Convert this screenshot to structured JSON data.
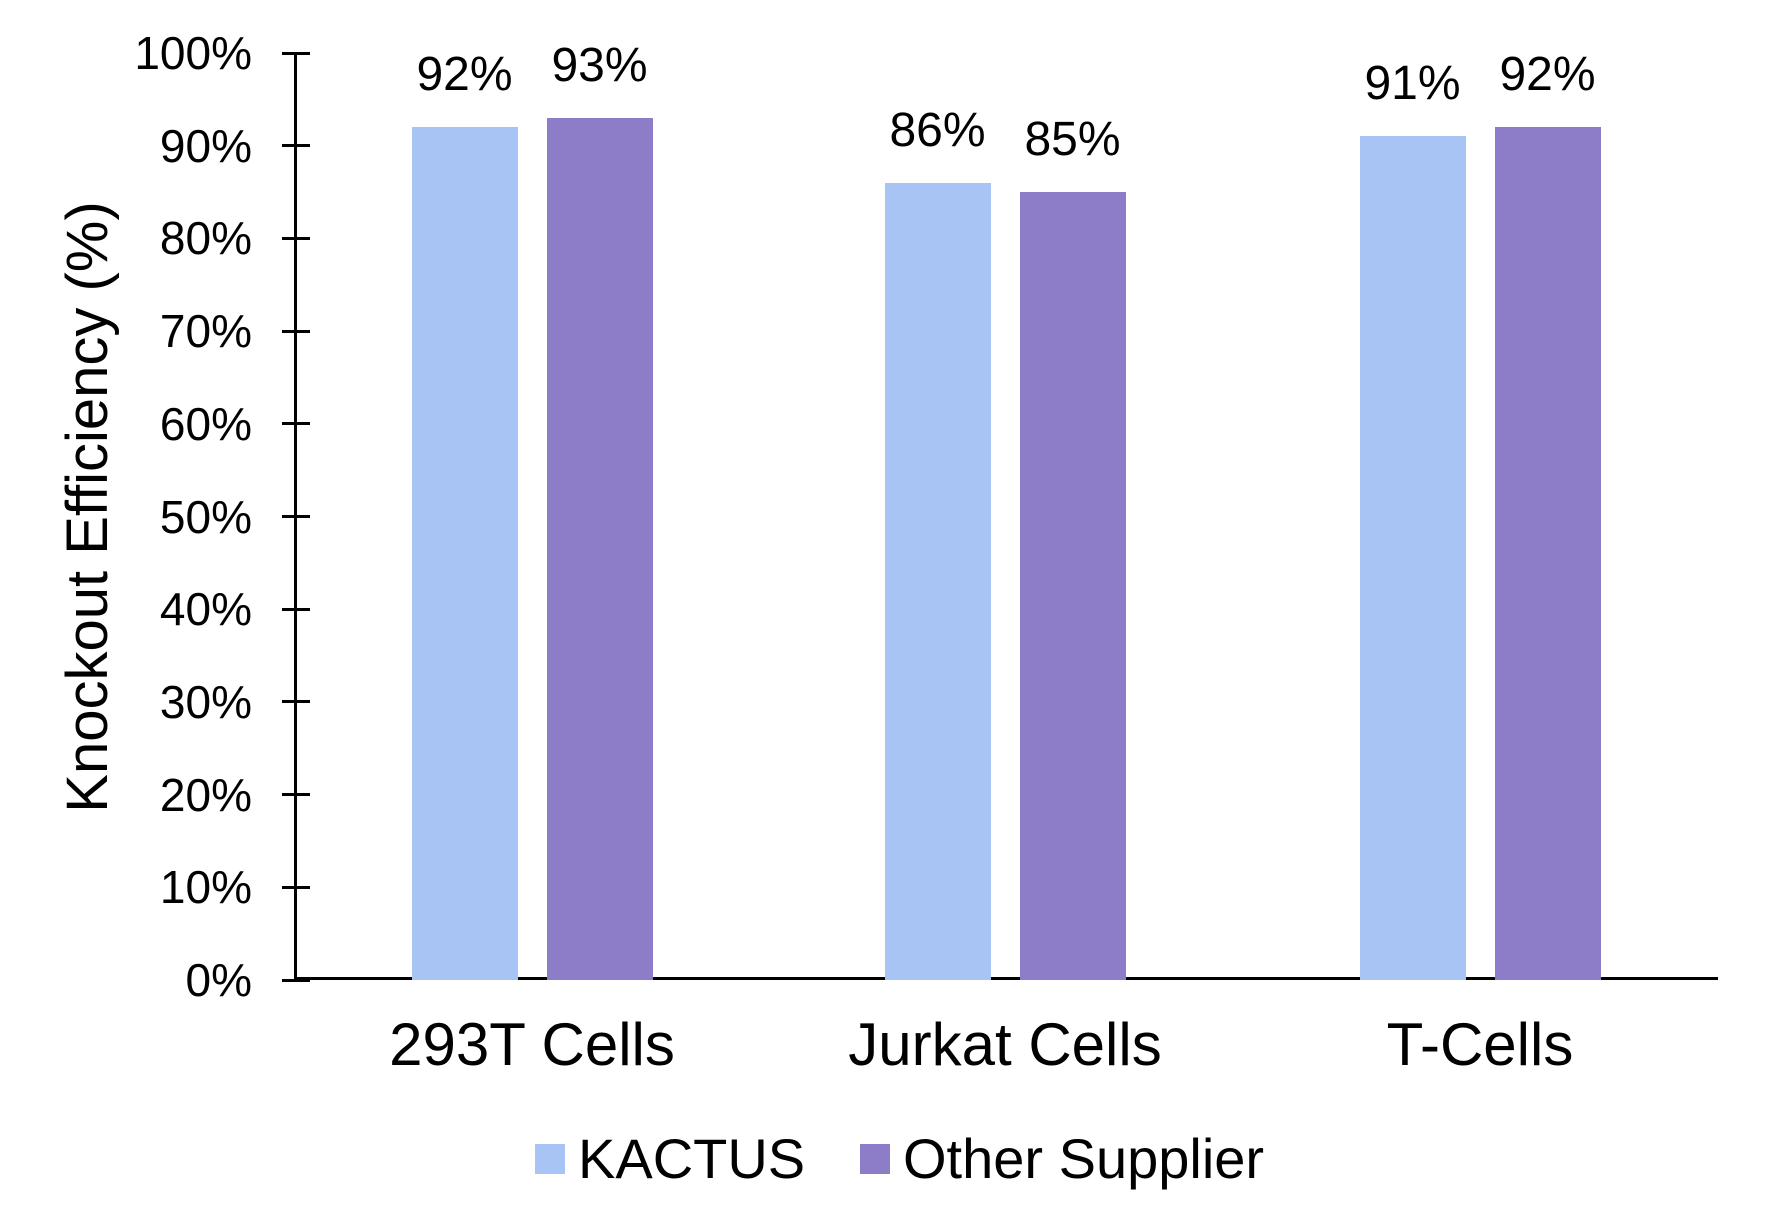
{
  "chart_data": {
    "type": "bar",
    "title": "",
    "ylabel": "Knockout Efficiency (%)",
    "xlabel": "",
    "categories": [
      "293T Cells",
      "Jurkat Cells",
      "T-Cells"
    ],
    "series": [
      {
        "name": "KACTUS",
        "color": "#A7C4F5",
        "values": [
          92,
          86,
          91
        ],
        "labels": [
          "92%",
          "86%",
          "91%"
        ]
      },
      {
        "name": "Other Supplier",
        "color": "#8D7CC8",
        "values": [
          93,
          85,
          92
        ],
        "labels": [
          "93%",
          "85%",
          "92%"
        ]
      }
    ],
    "yticks": [
      "0%",
      "10%",
      "20%",
      "30%",
      "40%",
      "50%",
      "60%",
      "70%",
      "80%",
      "90%",
      "100%"
    ],
    "ylim": [
      0,
      100
    ],
    "grid": false,
    "legend_position": "bottom",
    "axis_color": "#000000",
    "text_color": "#000000"
  }
}
